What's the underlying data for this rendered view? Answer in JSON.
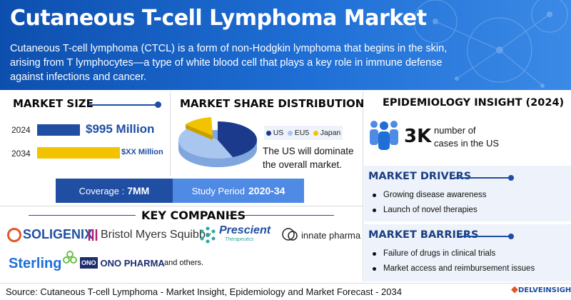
{
  "header": {
    "title": "Cutaneous T-cell Lymphoma Market",
    "description": "Cutaneous T-cell lymphoma (CTCL) is a form of non-Hodgkin lymphoma that begins in the skin, arising from T lymphocytes—a type of white blood cell that plays a key role in immune defense against infections and cancer."
  },
  "market_size": {
    "heading": "MARKET SIZE",
    "rows": [
      {
        "year": "2024",
        "value": "$995 Million"
      },
      {
        "year": "2034",
        "value": "$XX Million"
      }
    ]
  },
  "coverage": {
    "label": "Coverage :",
    "value": "7MM"
  },
  "study_period": {
    "label": "Study Period",
    "value": "2020-34"
  },
  "share": {
    "heading": "MARKET SHARE DISTRIBUTION",
    "legend": [
      {
        "name": "US",
        "color": "#1b3a8c"
      },
      {
        "name": "EU5",
        "color": "#a9c6ef"
      },
      {
        "name": "Japan",
        "color": "#f3c300"
      }
    ],
    "note": "The US will dominate the overall market."
  },
  "epidemiology": {
    "heading": "EPIDEMIOLOGY INSIGHT (2024)",
    "number": "3K",
    "text": "number of cases in the US"
  },
  "drivers": {
    "heading": "MARKET DRIVERS",
    "items": [
      "Growing disease awareness",
      "Launch of novel therapies"
    ]
  },
  "barriers": {
    "heading": "MARKET BARRIERS",
    "items": [
      "Failure of drugs in clinical trials",
      "Market access and reimbursement issues"
    ]
  },
  "companies": {
    "heading": "KEY COMPANIES",
    "soligenix": "SOLIGENIX",
    "bms": "Bristol Myers Squibb",
    "bms_tm": "™",
    "prescient": "Prescient",
    "prescient_sub": "Therapeutics",
    "innate": "innate pharma",
    "sterling": "Sterling",
    "ono_mark": "ONO",
    "ono": "ONO PHARMA",
    "others": "and others."
  },
  "footer": {
    "source": "Source: Cutaneous T-cell Lymphoma - Market Insight, Epidemiology and Market Forecast - 2034",
    "brand": "DELVEINSIGHT"
  },
  "colors": {
    "primary": "#1f4ea3",
    "accent": "#f3c300",
    "light": "#a9c6ef"
  }
}
